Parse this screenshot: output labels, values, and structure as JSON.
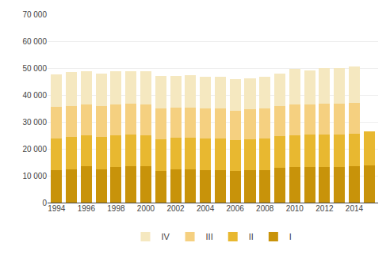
{
  "chart_data": {
    "type": "bar",
    "stacked": true,
    "categories": [
      "1994",
      null,
      "1996",
      null,
      "1998",
      null,
      "2000",
      null,
      "2002",
      null,
      "2004",
      null,
      "2006",
      null,
      "2008",
      null,
      "2010",
      null,
      "2012",
      null,
      "2014",
      null
    ],
    "series": [
      {
        "name": "I",
        "color": "#c8930a",
        "values": [
          12100,
          12300,
          13500,
          12500,
          13300,
          13500,
          13400,
          11800,
          12300,
          12300,
          12200,
          12000,
          11700,
          12100,
          12100,
          13000,
          13200,
          13200,
          13300,
          13300,
          13500,
          13700
        ]
      },
      {
        "name": "II",
        "color": "#e8b830",
        "values": [
          11800,
          12000,
          11500,
          11800,
          11700,
          11800,
          11600,
          11800,
          11700,
          11800,
          11500,
          11700,
          11500,
          11500,
          11600,
          11600,
          11800,
          12000,
          12100,
          12100,
          12200,
          12700
        ]
      },
      {
        "name": "III",
        "color": "#f5d080",
        "values": [
          11700,
          11700,
          11500,
          11700,
          11600,
          11500,
          11500,
          11400,
          11200,
          11200,
          11300,
          11200,
          10900,
          11000,
          11200,
          11200,
          11400,
          11200,
          11500,
          11500,
          11500,
          0
        ]
      },
      {
        "name": "IV",
        "color": "#f5e8c0",
        "values": [
          12100,
          12500,
          12200,
          12000,
          12100,
          12100,
          12200,
          12100,
          11800,
          12000,
          11900,
          12000,
          11700,
          11700,
          12000,
          12100,
          13200,
          12800,
          13200,
          13000,
          13400,
          0
        ]
      }
    ],
    "ylim": [
      0,
      70000
    ],
    "yticks": [
      0,
      {
        "value": 10000,
        "label": "10 000"
      },
      {
        "value": 20000,
        "label": "20 000"
      },
      {
        "value": 30000,
        "label": "30 000"
      },
      {
        "value": 40000,
        "label": "40 000"
      },
      {
        "value": 50000,
        "label": "50 000"
      },
      {
        "value": 60000,
        "label": "60 000"
      },
      {
        "value": 70000,
        "label": "70 000"
      }
    ],
    "grid": true,
    "legend": "bottom"
  }
}
